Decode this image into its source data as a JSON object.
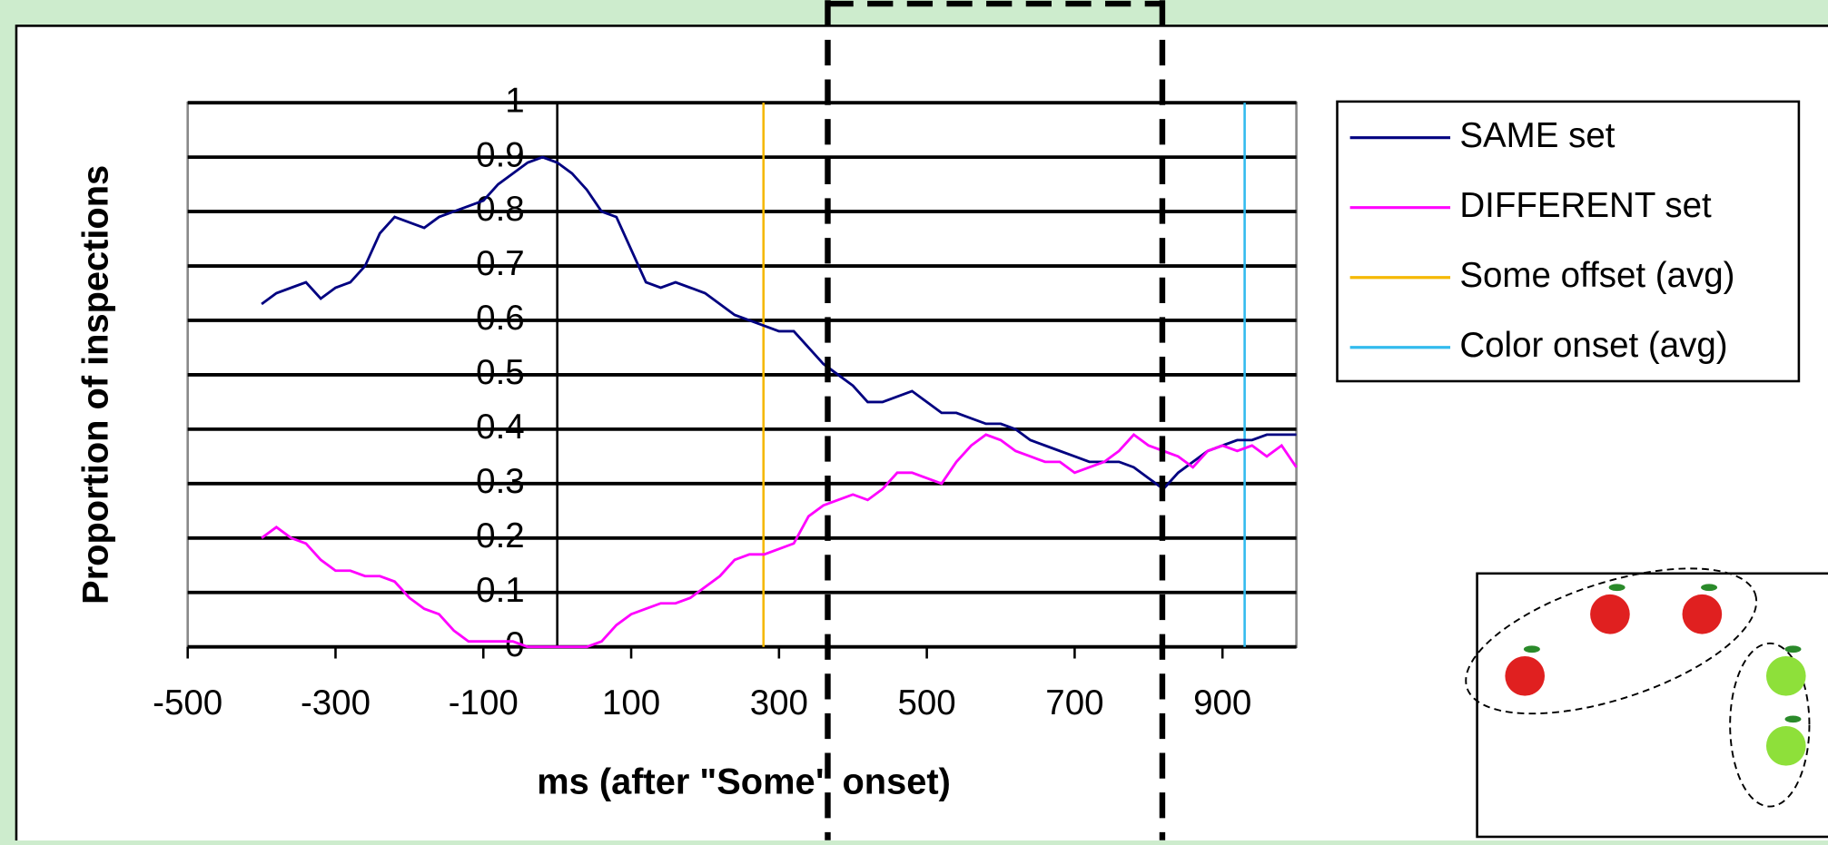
{
  "chart_data": {
    "type": "line",
    "x_label": "ms (after \"Some\" onset)",
    "y_label": "Proportion of inspections",
    "xlim": [
      -500,
      1000
    ],
    "xticks": [
      -500,
      -300,
      -100,
      100,
      300,
      500,
      700,
      900
    ],
    "ylim": [
      0,
      1
    ],
    "yticks": [
      0,
      0.1,
      0.2,
      0.3,
      0.4,
      0.5,
      0.6,
      0.7,
      0.8,
      0.9,
      1
    ],
    "grid": true,
    "legend": "upper right",
    "x": [
      -400,
      -380,
      -360,
      -340,
      -320,
      -300,
      -280,
      -260,
      -240,
      -220,
      -200,
      -180,
      -160,
      -140,
      -120,
      -100,
      -80,
      -60,
      -40,
      -20,
      0,
      20,
      40,
      60,
      80,
      100,
      120,
      140,
      160,
      180,
      200,
      220,
      240,
      260,
      280,
      300,
      320,
      340,
      360,
      380,
      400,
      420,
      440,
      460,
      480,
      500,
      520,
      540,
      560,
      580,
      600,
      620,
      640,
      660,
      680,
      700,
      720,
      740,
      760,
      780,
      800,
      820,
      840,
      860,
      880,
      900,
      920,
      940,
      960,
      980,
      1000
    ],
    "series": [
      {
        "name": "SAME set",
        "color": "#000080",
        "values": [
          0.63,
          0.65,
          0.66,
          0.67,
          0.64,
          0.66,
          0.67,
          0.7,
          0.76,
          0.79,
          0.78,
          0.77,
          0.79,
          0.8,
          0.81,
          0.82,
          0.85,
          0.87,
          0.89,
          0.9,
          0.89,
          0.87,
          0.84,
          0.8,
          0.79,
          0.73,
          0.67,
          0.66,
          0.67,
          0.66,
          0.65,
          0.63,
          0.61,
          0.6,
          0.59,
          0.58,
          0.58,
          0.55,
          0.52,
          0.5,
          0.48,
          0.45,
          0.45,
          0.46,
          0.47,
          0.45,
          0.43,
          0.43,
          0.42,
          0.41,
          0.41,
          0.4,
          0.38,
          0.37,
          0.36,
          0.35,
          0.34,
          0.34,
          0.34,
          0.33,
          0.31,
          0.29,
          0.32,
          0.34,
          0.36,
          0.37,
          0.38,
          0.38,
          0.39,
          0.39,
          0.39
        ]
      },
      {
        "name": "DIFFERENT set",
        "color": "#ff00ff",
        "values": [
          0.2,
          0.22,
          0.2,
          0.19,
          0.16,
          0.14,
          0.14,
          0.13,
          0.13,
          0.12,
          0.09,
          0.07,
          0.06,
          0.03,
          0.01,
          0.01,
          0.01,
          0.01,
          0.0,
          0.0,
          0.0,
          0.0,
          0.0,
          0.01,
          0.04,
          0.06,
          0.07,
          0.08,
          0.08,
          0.09,
          0.11,
          0.13,
          0.16,
          0.17,
          0.17,
          0.18,
          0.19,
          0.24,
          0.26,
          0.27,
          0.28,
          0.27,
          0.29,
          0.32,
          0.32,
          0.31,
          0.3,
          0.34,
          0.37,
          0.39,
          0.38,
          0.36,
          0.35,
          0.34,
          0.34,
          0.32,
          0.33,
          0.34,
          0.36,
          0.39,
          0.37,
          0.36,
          0.35,
          0.33,
          0.36,
          0.37,
          0.36,
          0.37,
          0.35,
          0.37,
          0.33
        ]
      }
    ],
    "vlines": [
      {
        "name": "Some offset (avg)",
        "color": "#f5b800",
        "x": 279
      },
      {
        "name": "Color onset (avg)",
        "color": "#33bbee",
        "x": 930
      }
    ]
  }
}
